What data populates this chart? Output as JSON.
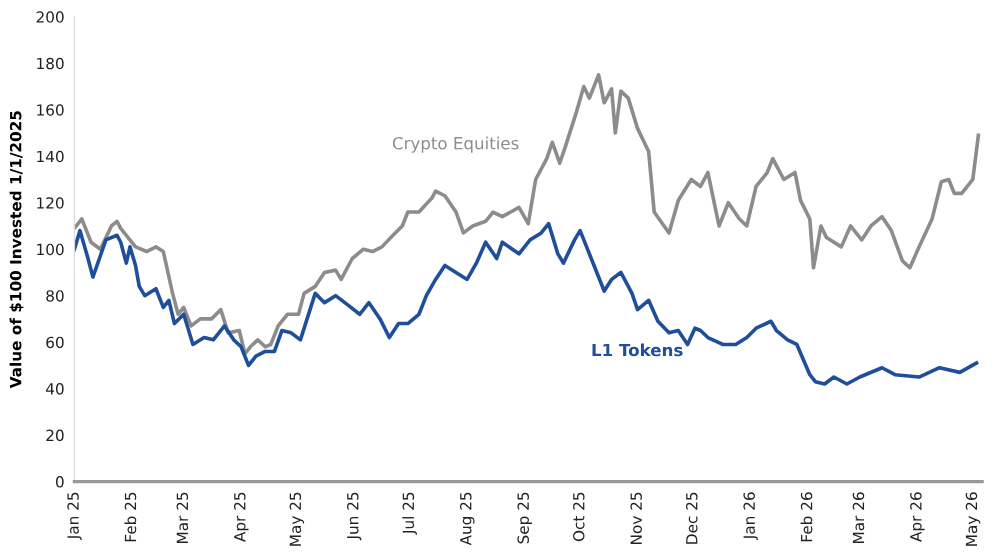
{
  "chart_data": {
    "type": "line",
    "ylabel": "Value of $100 Invested 1/1/2025",
    "ylim": [
      0,
      200
    ],
    "yticks": [
      0,
      20,
      40,
      60,
      80,
      100,
      120,
      140,
      160,
      180,
      200
    ],
    "xlim": [
      "2025-01-01",
      "2026-05-06"
    ],
    "xticks": [
      {
        "value": "2025-01-01",
        "label": "Jan 25"
      },
      {
        "value": "2025-02-01",
        "label": "Feb 25"
      },
      {
        "value": "2025-03-01",
        "label": "Mar 25"
      },
      {
        "value": "2025-04-01",
        "label": "Apr 25"
      },
      {
        "value": "2025-05-01",
        "label": "May 25"
      },
      {
        "value": "2025-06-01",
        "label": "Jun 25"
      },
      {
        "value": "2025-07-01",
        "label": "Jul 25"
      },
      {
        "value": "2025-08-01",
        "label": "Aug 25"
      },
      {
        "value": "2025-09-01",
        "label": "Sep 25"
      },
      {
        "value": "2025-10-01",
        "label": "Oct 25"
      },
      {
        "value": "2025-11-01",
        "label": "Nov 25"
      },
      {
        "value": "2025-12-01",
        "label": "Dec 25"
      },
      {
        "value": "2026-01-01",
        "label": "Jan 26"
      },
      {
        "value": "2026-02-01",
        "label": "Feb 26"
      },
      {
        "value": "2026-03-01",
        "label": "Mar 26"
      },
      {
        "value": "2026-04-01",
        "label": "Apr 26"
      },
      {
        "value": "2026-05-01",
        "label": "May 26"
      }
    ],
    "grid": false,
    "legend": false,
    "marker": "none",
    "line_style": "solid",
    "series": [
      {
        "name": "Crypto Equities",
        "color": "#8c8c8c",
        "x": [
          "2025-01-01",
          "2025-01-05",
          "2025-01-10",
          "2025-01-15",
          "2025-01-21",
          "2025-01-24",
          "2025-01-26",
          "2025-02-03",
          "2025-02-09",
          "2025-02-14",
          "2025-02-18",
          "2025-02-23",
          "2025-02-26",
          "2025-03-01",
          "2025-03-05",
          "2025-03-10",
          "2025-03-16",
          "2025-03-21",
          "2025-03-25",
          "2025-03-31",
          "2025-04-03",
          "2025-04-06",
          "2025-04-10",
          "2025-04-14",
          "2025-04-17",
          "2025-04-21",
          "2025-04-26",
          "2025-05-02",
          "2025-05-05",
          "2025-05-11",
          "2025-05-16",
          "2025-05-22",
          "2025-05-25",
          "2025-05-31",
          "2025-06-06",
          "2025-06-11",
          "2025-06-16",
          "2025-06-22",
          "2025-06-27",
          "2025-06-30",
          "2025-07-06",
          "2025-07-13",
          "2025-07-15",
          "2025-07-20",
          "2025-07-26",
          "2025-07-30",
          "2025-08-04",
          "2025-08-11",
          "2025-08-15",
          "2025-08-20",
          "2025-08-29",
          "2025-09-03",
          "2025-09-07",
          "2025-09-13",
          "2025-09-16",
          "2025-09-20",
          "2025-09-23",
          "2025-09-29",
          "2025-10-03",
          "2025-10-06",
          "2025-10-11",
          "2025-10-14",
          "2025-10-18",
          "2025-10-20",
          "2025-10-23",
          "2025-10-27",
          "2025-11-01",
          "2025-11-07",
          "2025-11-10",
          "2025-11-18",
          "2025-11-23",
          "2025-11-30",
          "2025-12-05",
          "2025-12-09",
          "2025-12-15",
          "2025-12-20",
          "2025-12-26",
          "2025-12-30",
          "2026-01-04",
          "2026-01-10",
          "2026-01-13",
          "2026-01-19",
          "2026-01-25",
          "2026-01-28",
          "2026-02-02",
          "2026-02-04",
          "2026-02-08",
          "2026-02-11",
          "2026-02-19",
          "2026-02-24",
          "2026-03-02",
          "2026-03-07",
          "2026-03-13",
          "2026-03-18",
          "2026-03-24",
          "2026-03-28",
          "2026-04-02",
          "2026-04-09",
          "2026-04-14",
          "2026-04-18",
          "2026-04-21",
          "2026-04-25",
          "2026-05-01",
          "2026-05-04"
        ],
        "values": [
          109,
          113,
          103,
          100,
          110,
          112,
          109,
          101,
          99,
          101,
          99,
          81,
          72,
          75,
          67,
          70,
          70,
          74,
          64,
          65,
          55,
          58,
          61,
          58,
          59,
          67,
          72,
          72,
          81,
          84,
          90,
          91,
          87,
          96,
          100,
          99,
          101,
          106,
          110,
          116,
          116,
          122,
          125,
          123,
          116,
          107,
          110,
          112,
          116,
          114,
          118,
          111,
          130,
          139,
          146,
          137,
          144,
          159,
          170,
          165,
          175,
          163,
          169,
          150,
          168,
          165,
          152,
          142,
          116,
          107,
          121,
          130,
          127,
          133,
          110,
          120,
          113,
          110,
          127,
          133,
          139,
          130,
          133,
          121,
          113,
          92,
          110,
          105,
          101,
          110,
          104,
          110,
          114,
          108,
          95,
          92,
          101,
          113,
          129,
          130,
          124,
          124,
          130,
          149
        ]
      },
      {
        "name": "L1 Tokens",
        "color": "#1f4e9a",
        "x": [
          "2025-01-01",
          "2025-01-04",
          "2025-01-08",
          "2025-01-11",
          "2025-01-18",
          "2025-01-24",
          "2025-01-26",
          "2025-01-29",
          "2025-01-31",
          "2025-02-03",
          "2025-02-05",
          "2025-02-08",
          "2025-02-14",
          "2025-02-18",
          "2025-02-21",
          "2025-02-24",
          "2025-03-01",
          "2025-03-06",
          "2025-03-12",
          "2025-03-17",
          "2025-03-23",
          "2025-03-28",
          "2025-04-01",
          "2025-04-05",
          "2025-04-09",
          "2025-04-14",
          "2025-04-19",
          "2025-04-23",
          "2025-04-28",
          "2025-05-03",
          "2025-05-07",
          "2025-05-11",
          "2025-05-16",
          "2025-05-22",
          "2025-05-27",
          "2025-06-04",
          "2025-06-09",
          "2025-06-15",
          "2025-06-20",
          "2025-06-25",
          "2025-06-30",
          "2025-07-06",
          "2025-07-10",
          "2025-07-15",
          "2025-07-20",
          "2025-07-26",
          "2025-08-01",
          "2025-08-06",
          "2025-08-11",
          "2025-08-17",
          "2025-08-20",
          "2025-08-29",
          "2025-09-04",
          "2025-09-10",
          "2025-09-14",
          "2025-09-19",
          "2025-09-22",
          "2025-09-28",
          "2025-10-01",
          "2025-10-05",
          "2025-10-09",
          "2025-10-14",
          "2025-10-18",
          "2025-10-23",
          "2025-10-29",
          "2025-11-01",
          "2025-11-07",
          "2025-11-12",
          "2025-11-18",
          "2025-11-23",
          "2025-11-28",
          "2025-12-02",
          "2025-12-05",
          "2025-12-09",
          "2025-12-17",
          "2025-12-24",
          "2025-12-30",
          "2026-01-04",
          "2026-01-12",
          "2026-01-15",
          "2026-01-21",
          "2026-01-26",
          "2026-02-02",
          "2026-02-05",
          "2026-02-10",
          "2026-02-15",
          "2026-02-22",
          "2026-03-01",
          "2026-03-13",
          "2026-03-20",
          "2026-04-02",
          "2026-04-13",
          "2026-04-24",
          "2026-05-03"
        ],
        "values": [
          100,
          108,
          97,
          88,
          104,
          106,
          103,
          94,
          101,
          93,
          84,
          80,
          83,
          75,
          78,
          68,
          72,
          59,
          62,
          61,
          67,
          61,
          58,
          50,
          54,
          56,
          56,
          65,
          64,
          61,
          71,
          81,
          77,
          80,
          77,
          72,
          77,
          70,
          62,
          68,
          68,
          72,
          80,
          87,
          93,
          90,
          87,
          94,
          103,
          96,
          103,
          98,
          104,
          107,
          111,
          98,
          94,
          104,
          108,
          100,
          92,
          82,
          87,
          90,
          81,
          74,
          78,
          69,
          64,
          65,
          59,
          66,
          65,
          62,
          59,
          59,
          62,
          66,
          69,
          65,
          61,
          59,
          46,
          43,
          42,
          45,
          42,
          45,
          49,
          46,
          45,
          49,
          47,
          51
        ]
      }
    ]
  }
}
